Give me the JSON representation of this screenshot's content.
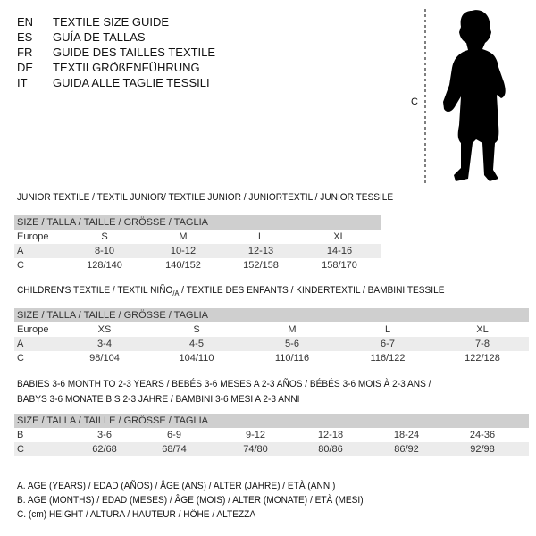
{
  "titles": [
    {
      "code": "EN",
      "text": "TEXTILE SIZE GUIDE"
    },
    {
      "code": "ES",
      "text": "GUÍA DE TALLAS"
    },
    {
      "code": "FR",
      "text": "GUIDE DES TAILLES TEXTILE"
    },
    {
      "code": "DE",
      "text": "TEXTILGRÖßENFÜHRUNG"
    },
    {
      "code": "IT",
      "text": "GUIDA ALLE TAGLIE TESSILI"
    }
  ],
  "figure": {
    "measure_label": "C"
  },
  "junior": {
    "heading": "JUNIOR TEXTILE / TEXTIL JUNIOR/ TEXTILE JUNIOR / JUNIORTEXTIL / JUNIOR TESSILE",
    "header": "SIZE / TALLA / TAILLE / GRÖSSE / TAGLIA",
    "rows": [
      {
        "label": "Europe",
        "values": [
          "S",
          "M",
          "L",
          "XL"
        ]
      },
      {
        "label": "A",
        "values": [
          "8-10",
          "10-12",
          "12-13",
          "14-16"
        ]
      },
      {
        "label": "C",
        "values": [
          "128/140",
          "140/152",
          "152/158",
          "158/170"
        ]
      }
    ]
  },
  "children": {
    "heading_pre": "CHILDREN'S TEXTILE / TEXTIL NIÑO",
    "heading_sub": "/A",
    "heading_post": " / TEXTILE DES ENFANTS / KINDERTEXTIL / BAMBINI TESSILE",
    "header": "SIZE / TALLA / TAILLE / GRÖSSE / TAGLIA",
    "rows": [
      {
        "label": "Europe",
        "values": [
          "XS",
          "S",
          "M",
          "L",
          "XL"
        ]
      },
      {
        "label": "A",
        "values": [
          "3-4",
          "4-5",
          "5-6",
          "6-7",
          "7-8"
        ]
      },
      {
        "label": "C",
        "values": [
          "98/104",
          "104/110",
          "110/116",
          "116/122",
          "122/128"
        ]
      }
    ]
  },
  "babies": {
    "heading_line1": "BABIES 3-6 MONTH TO 2-3 YEARS / BEBÉS 3-6 MESES A 2-3 AÑOS / BÉBÉS 3-6 MOIS À 2-3 ANS /",
    "heading_line2": "BABYS 3-6 MONATE BIS 2-3 JAHRE / BAMBINI 3-6 MESI A 2-3 ANNI",
    "header": "SIZE / TALLA / TAILLE / GRÖSSE / TAGLIA",
    "rows": [
      {
        "label": "B",
        "values": [
          "3-6",
          "6-9",
          "9-12",
          "12-18",
          "18-24",
          "24-36"
        ]
      },
      {
        "label": "C",
        "values": [
          "62/68",
          "68/74",
          "74/80",
          "80/86",
          "86/92",
          "92/98"
        ]
      }
    ]
  },
  "legend": [
    "A. AGE (YEARS) / EDAD (AÑOS) / ÂGE (ANS) / ALTER (JAHRE) / ETÀ (ANNI)",
    "B. AGE (MONTHS) / EDAD (MESES) / ÂGE (MOIS) / ALTER (MONATE) / ETÀ (MESI)",
    "C. (cm) HEIGHT / ALTURA / HAUTEUR / HÖHE / ALTEZZA"
  ]
}
